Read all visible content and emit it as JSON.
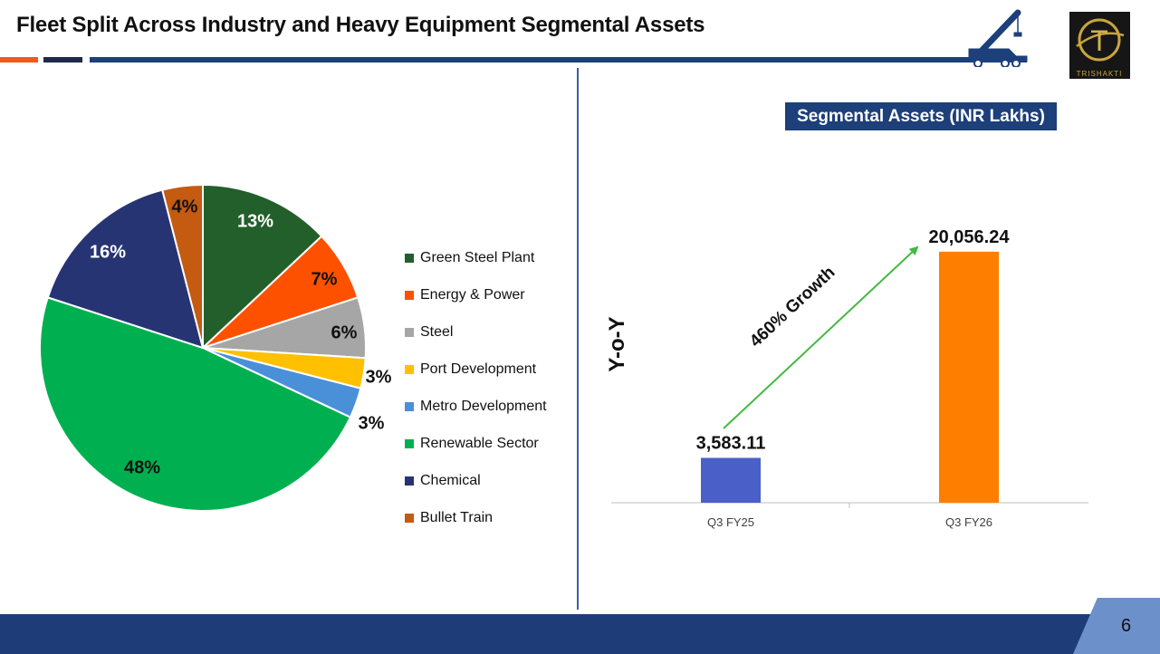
{
  "page": {
    "title": "Fleet Split Across Industry and Heavy Equipment Segmental Assets",
    "page_number": "6"
  },
  "logo": {
    "letter": "T",
    "text": "TRISHAKTI"
  },
  "colors": {
    "navy": "#1d3f7a",
    "orange": "#f05a1a",
    "dark": "#1f2a4a",
    "divider": "#3b5ea8",
    "footer": "#1e3d78"
  },
  "chart_data": [
    {
      "type": "pie",
      "title": "",
      "categories": [
        "Green Steel Plant",
        "Energy & Power",
        "Steel",
        "Port Development",
        "Metro Development",
        "Renewable Sector",
        "Chemical",
        "Bullet Train"
      ],
      "values": [
        13,
        7,
        6,
        3,
        3,
        48,
        16,
        4
      ],
      "labels": [
        "13%",
        "7%",
        "6%",
        "3%",
        "3%",
        "48%",
        "16%",
        "4%"
      ],
      "colors": [
        "#235f2a",
        "#fe5100",
        "#a6a6a6",
        "#ffc000",
        "#4a90d9",
        "#00b050",
        "#273474",
        "#c55a11"
      ],
      "legend": "right"
    },
    {
      "type": "bar",
      "title": "Segmental Assets (INR Lakhs)",
      "side_label": "Y-o-Y",
      "categories": [
        "Q3 FY25",
        "Q3 FY26"
      ],
      "values": [
        3583.11,
        20056.24
      ],
      "value_labels": [
        "3,583.11",
        "20,056.24"
      ],
      "colors": [
        "#4b5fc8",
        "#fe7f00"
      ],
      "growth_label": "460% Growth",
      "growth_color": "#44b944",
      "ylim": [
        0,
        22000
      ]
    }
  ]
}
